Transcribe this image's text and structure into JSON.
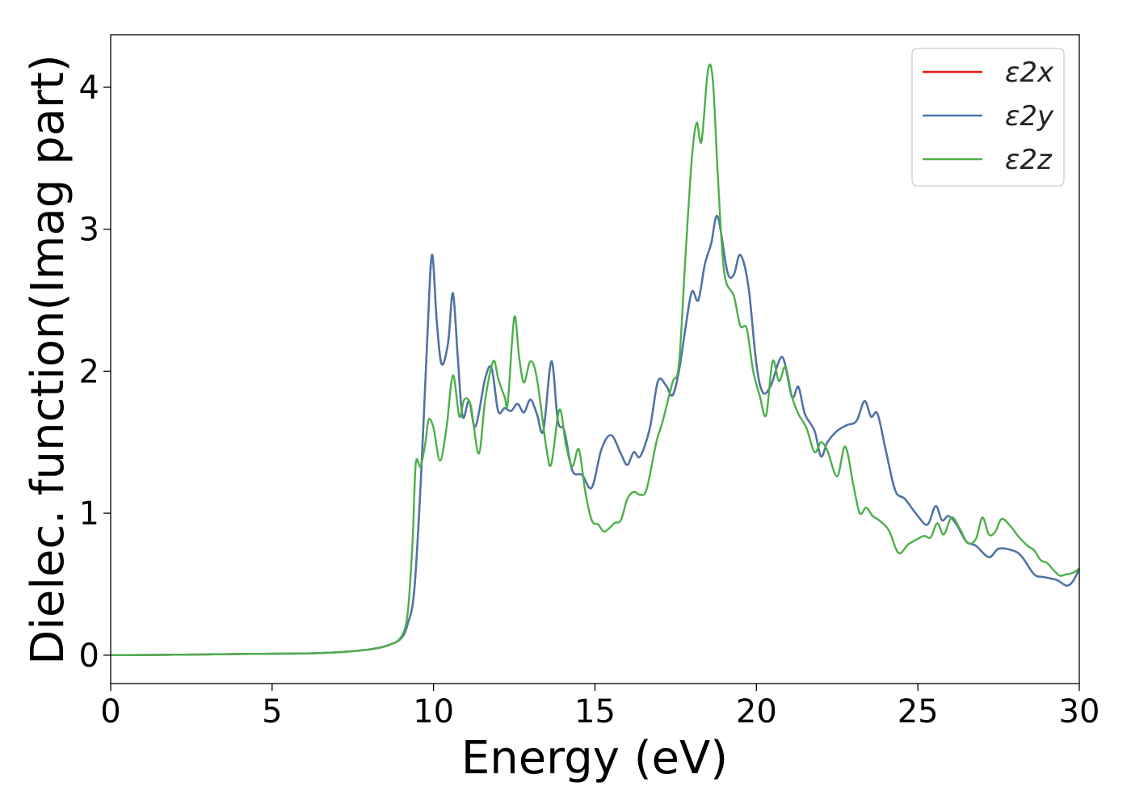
{
  "chart_data": {
    "type": "line",
    "title": "",
    "xlabel": "Energy (eV)",
    "ylabel": "Dielec. function(Imag part)",
    "xlim": [
      0,
      30
    ],
    "ylim": [
      -0.2,
      4.37
    ],
    "xticks": [
      0,
      5,
      10,
      15,
      20,
      25,
      30
    ],
    "yticks": [
      0,
      1,
      2,
      3,
      4
    ],
    "xtick_labels": [
      "0",
      "5",
      "10",
      "15",
      "20",
      "25",
      "30"
    ],
    "ytick_labels": [
      "0",
      "1",
      "2",
      "3",
      "4"
    ],
    "grid": false,
    "legend_position": "top-right",
    "series": [
      {
        "name": "ε2x",
        "color": "#e41a1c",
        "points": [
          [
            0,
            0
          ],
          [
            2,
            0.003
          ],
          [
            4,
            0.008
          ],
          [
            6,
            0.012
          ],
          [
            7,
            0.02
          ],
          [
            8,
            0.04
          ],
          [
            8.6,
            0.07
          ],
          [
            9.0,
            0.12
          ],
          [
            9.2,
            0.22
          ],
          [
            9.4,
            0.45
          ],
          [
            9.6,
            1.2
          ],
          [
            9.8,
            2.2
          ],
          [
            9.95,
            2.82
          ],
          [
            10.1,
            2.35
          ],
          [
            10.25,
            2.05
          ],
          [
            10.45,
            2.2
          ],
          [
            10.6,
            2.55
          ],
          [
            10.75,
            2.1
          ],
          [
            10.9,
            1.68
          ],
          [
            11.1,
            1.79
          ],
          [
            11.3,
            1.61
          ],
          [
            11.6,
            1.95
          ],
          [
            11.8,
            2.02
          ],
          [
            12.0,
            1.72
          ],
          [
            12.2,
            1.74
          ],
          [
            12.4,
            1.72
          ],
          [
            12.6,
            1.77
          ],
          [
            12.8,
            1.71
          ],
          [
            13.0,
            1.8
          ],
          [
            13.2,
            1.7
          ],
          [
            13.4,
            1.58
          ],
          [
            13.65,
            2.07
          ],
          [
            13.85,
            1.65
          ],
          [
            14.05,
            1.58
          ],
          [
            14.3,
            1.3
          ],
          [
            14.6,
            1.27
          ],
          [
            14.9,
            1.18
          ],
          [
            15.2,
            1.45
          ],
          [
            15.5,
            1.55
          ],
          [
            15.8,
            1.42
          ],
          [
            16.0,
            1.34
          ],
          [
            16.2,
            1.43
          ],
          [
            16.4,
            1.4
          ],
          [
            16.7,
            1.6
          ],
          [
            16.95,
            1.93
          ],
          [
            17.2,
            1.9
          ],
          [
            17.4,
            1.83
          ],
          [
            17.6,
            2.0
          ],
          [
            17.8,
            2.3
          ],
          [
            18.0,
            2.56
          ],
          [
            18.2,
            2.5
          ],
          [
            18.4,
            2.75
          ],
          [
            18.6,
            2.9
          ],
          [
            18.8,
            3.09
          ],
          [
            19.1,
            2.7
          ],
          [
            19.3,
            2.68
          ],
          [
            19.5,
            2.82
          ],
          [
            19.75,
            2.6
          ],
          [
            20.0,
            2.05
          ],
          [
            20.2,
            1.85
          ],
          [
            20.45,
            1.9
          ],
          [
            20.8,
            2.1
          ],
          [
            21.1,
            1.82
          ],
          [
            21.3,
            1.89
          ],
          [
            21.5,
            1.7
          ],
          [
            21.8,
            1.58
          ],
          [
            22.0,
            1.4
          ],
          [
            22.2,
            1.5
          ],
          [
            22.5,
            1.58
          ],
          [
            22.8,
            1.62
          ],
          [
            23.1,
            1.65
          ],
          [
            23.35,
            1.79
          ],
          [
            23.55,
            1.68
          ],
          [
            23.75,
            1.7
          ],
          [
            24.0,
            1.45
          ],
          [
            24.3,
            1.16
          ],
          [
            24.6,
            1.1
          ],
          [
            25.0,
            0.98
          ],
          [
            25.3,
            0.92
          ],
          [
            25.55,
            1.05
          ],
          [
            25.75,
            0.95
          ],
          [
            25.95,
            0.98
          ],
          [
            26.2,
            0.92
          ],
          [
            26.5,
            0.8
          ],
          [
            26.8,
            0.77
          ],
          [
            27.2,
            0.69
          ],
          [
            27.5,
            0.75
          ],
          [
            27.9,
            0.74
          ],
          [
            28.2,
            0.7
          ],
          [
            28.6,
            0.57
          ],
          [
            28.9,
            0.55
          ],
          [
            29.3,
            0.53
          ],
          [
            29.6,
            0.49
          ],
          [
            29.8,
            0.52
          ],
          [
            30,
            0.61
          ]
        ]
      },
      {
        "name": "ε2y",
        "color": "#4677ad",
        "points": [
          [
            0,
            0
          ],
          [
            2,
            0.003
          ],
          [
            4,
            0.008
          ],
          [
            6,
            0.012
          ],
          [
            7,
            0.02
          ],
          [
            8,
            0.04
          ],
          [
            8.6,
            0.07
          ],
          [
            9.0,
            0.12
          ],
          [
            9.2,
            0.22
          ],
          [
            9.4,
            0.45
          ],
          [
            9.6,
            1.2
          ],
          [
            9.8,
            2.2
          ],
          [
            9.95,
            2.82
          ],
          [
            10.1,
            2.35
          ],
          [
            10.25,
            2.05
          ],
          [
            10.45,
            2.2
          ],
          [
            10.6,
            2.55
          ],
          [
            10.75,
            2.1
          ],
          [
            10.9,
            1.68
          ],
          [
            11.1,
            1.79
          ],
          [
            11.3,
            1.61
          ],
          [
            11.6,
            1.95
          ],
          [
            11.8,
            2.02
          ],
          [
            12.0,
            1.72
          ],
          [
            12.2,
            1.74
          ],
          [
            12.4,
            1.72
          ],
          [
            12.6,
            1.77
          ],
          [
            12.8,
            1.71
          ],
          [
            13.0,
            1.8
          ],
          [
            13.2,
            1.7
          ],
          [
            13.4,
            1.58
          ],
          [
            13.65,
            2.07
          ],
          [
            13.85,
            1.65
          ],
          [
            14.05,
            1.58
          ],
          [
            14.3,
            1.3
          ],
          [
            14.6,
            1.27
          ],
          [
            14.9,
            1.18
          ],
          [
            15.2,
            1.45
          ],
          [
            15.5,
            1.55
          ],
          [
            15.8,
            1.42
          ],
          [
            16.0,
            1.34
          ],
          [
            16.2,
            1.43
          ],
          [
            16.4,
            1.4
          ],
          [
            16.7,
            1.6
          ],
          [
            16.95,
            1.93
          ],
          [
            17.2,
            1.9
          ],
          [
            17.4,
            1.83
          ],
          [
            17.6,
            2.0
          ],
          [
            17.8,
            2.3
          ],
          [
            18.0,
            2.56
          ],
          [
            18.2,
            2.5
          ],
          [
            18.4,
            2.75
          ],
          [
            18.6,
            2.9
          ],
          [
            18.8,
            3.09
          ],
          [
            19.1,
            2.7
          ],
          [
            19.3,
            2.68
          ],
          [
            19.5,
            2.82
          ],
          [
            19.75,
            2.6
          ],
          [
            20.0,
            2.05
          ],
          [
            20.2,
            1.85
          ],
          [
            20.45,
            1.9
          ],
          [
            20.8,
            2.1
          ],
          [
            21.1,
            1.82
          ],
          [
            21.3,
            1.89
          ],
          [
            21.5,
            1.7
          ],
          [
            21.8,
            1.58
          ],
          [
            22.0,
            1.4
          ],
          [
            22.2,
            1.5
          ],
          [
            22.5,
            1.58
          ],
          [
            22.8,
            1.62
          ],
          [
            23.1,
            1.65
          ],
          [
            23.35,
            1.79
          ],
          [
            23.55,
            1.68
          ],
          [
            23.75,
            1.7
          ],
          [
            24.0,
            1.45
          ],
          [
            24.3,
            1.16
          ],
          [
            24.6,
            1.1
          ],
          [
            25.0,
            0.98
          ],
          [
            25.3,
            0.92
          ],
          [
            25.55,
            1.05
          ],
          [
            25.75,
            0.95
          ],
          [
            25.95,
            0.98
          ],
          [
            26.2,
            0.92
          ],
          [
            26.5,
            0.8
          ],
          [
            26.8,
            0.77
          ],
          [
            27.2,
            0.69
          ],
          [
            27.5,
            0.75
          ],
          [
            27.9,
            0.74
          ],
          [
            28.2,
            0.7
          ],
          [
            28.6,
            0.57
          ],
          [
            28.9,
            0.55
          ],
          [
            29.3,
            0.53
          ],
          [
            29.6,
            0.49
          ],
          [
            29.8,
            0.52
          ],
          [
            30,
            0.61
          ]
        ]
      },
      {
        "name": "ε2z",
        "color": "#4daf4a",
        "points": [
          [
            0,
            0
          ],
          [
            2,
            0.003
          ],
          [
            4,
            0.008
          ],
          [
            6,
            0.012
          ],
          [
            7,
            0.02
          ],
          [
            8,
            0.04
          ],
          [
            8.6,
            0.07
          ],
          [
            9.0,
            0.13
          ],
          [
            9.2,
            0.3
          ],
          [
            9.35,
            0.8
          ],
          [
            9.45,
            1.35
          ],
          [
            9.6,
            1.33
          ],
          [
            9.75,
            1.5
          ],
          [
            9.85,
            1.66
          ],
          [
            10.0,
            1.6
          ],
          [
            10.2,
            1.37
          ],
          [
            10.4,
            1.6
          ],
          [
            10.6,
            1.97
          ],
          [
            10.8,
            1.68
          ],
          [
            10.95,
            1.8
          ],
          [
            11.15,
            1.76
          ],
          [
            11.4,
            1.42
          ],
          [
            11.6,
            1.8
          ],
          [
            11.85,
            2.07
          ],
          [
            12.0,
            1.95
          ],
          [
            12.2,
            1.82
          ],
          [
            12.3,
            1.78
          ],
          [
            12.5,
            2.38
          ],
          [
            12.65,
            2.1
          ],
          [
            12.8,
            1.92
          ],
          [
            13.0,
            2.07
          ],
          [
            13.2,
            1.95
          ],
          [
            13.5,
            1.45
          ],
          [
            13.65,
            1.35
          ],
          [
            13.9,
            1.73
          ],
          [
            14.1,
            1.48
          ],
          [
            14.3,
            1.33
          ],
          [
            14.5,
            1.45
          ],
          [
            14.7,
            1.15
          ],
          [
            14.9,
            0.95
          ],
          [
            15.1,
            0.92
          ],
          [
            15.3,
            0.87
          ],
          [
            15.6,
            0.93
          ],
          [
            15.8,
            0.95
          ],
          [
            16.0,
            1.1
          ],
          [
            16.2,
            1.15
          ],
          [
            16.4,
            1.13
          ],
          [
            16.6,
            1.17
          ],
          [
            16.9,
            1.5
          ],
          [
            17.1,
            1.65
          ],
          [
            17.4,
            1.92
          ],
          [
            17.6,
            2.05
          ],
          [
            17.8,
            2.8
          ],
          [
            18.0,
            3.5
          ],
          [
            18.15,
            3.75
          ],
          [
            18.3,
            3.62
          ],
          [
            18.5,
            4.12
          ],
          [
            18.65,
            4.05
          ],
          [
            18.8,
            3.4
          ],
          [
            19.0,
            2.7
          ],
          [
            19.3,
            2.53
          ],
          [
            19.5,
            2.32
          ],
          [
            19.7,
            2.3
          ],
          [
            19.9,
            2.0
          ],
          [
            20.1,
            1.83
          ],
          [
            20.3,
            1.69
          ],
          [
            20.5,
            2.07
          ],
          [
            20.7,
            1.93
          ],
          [
            20.9,
            2.03
          ],
          [
            21.1,
            1.82
          ],
          [
            21.3,
            1.7
          ],
          [
            21.55,
            1.6
          ],
          [
            21.8,
            1.43
          ],
          [
            22.0,
            1.5
          ],
          [
            22.2,
            1.44
          ],
          [
            22.5,
            1.26
          ],
          [
            22.75,
            1.47
          ],
          [
            23.0,
            1.2
          ],
          [
            23.2,
            1.0
          ],
          [
            23.4,
            1.04
          ],
          [
            23.6,
            0.98
          ],
          [
            23.8,
            0.95
          ],
          [
            24.1,
            0.88
          ],
          [
            24.4,
            0.72
          ],
          [
            24.7,
            0.78
          ],
          [
            25.0,
            0.82
          ],
          [
            25.2,
            0.84
          ],
          [
            25.4,
            0.83
          ],
          [
            25.6,
            0.93
          ],
          [
            25.8,
            0.85
          ],
          [
            26.05,
            0.97
          ],
          [
            26.3,
            0.89
          ],
          [
            26.55,
            0.79
          ],
          [
            26.8,
            0.82
          ],
          [
            27.0,
            0.97
          ],
          [
            27.2,
            0.85
          ],
          [
            27.4,
            0.87
          ],
          [
            27.6,
            0.96
          ],
          [
            27.9,
            0.9
          ],
          [
            28.1,
            0.84
          ],
          [
            28.4,
            0.77
          ],
          [
            28.6,
            0.74
          ],
          [
            28.8,
            0.67
          ],
          [
            29.0,
            0.65
          ],
          [
            29.2,
            0.6
          ],
          [
            29.4,
            0.56
          ],
          [
            29.6,
            0.57
          ],
          [
            29.8,
            0.58
          ],
          [
            30,
            0.61
          ]
        ]
      }
    ]
  }
}
